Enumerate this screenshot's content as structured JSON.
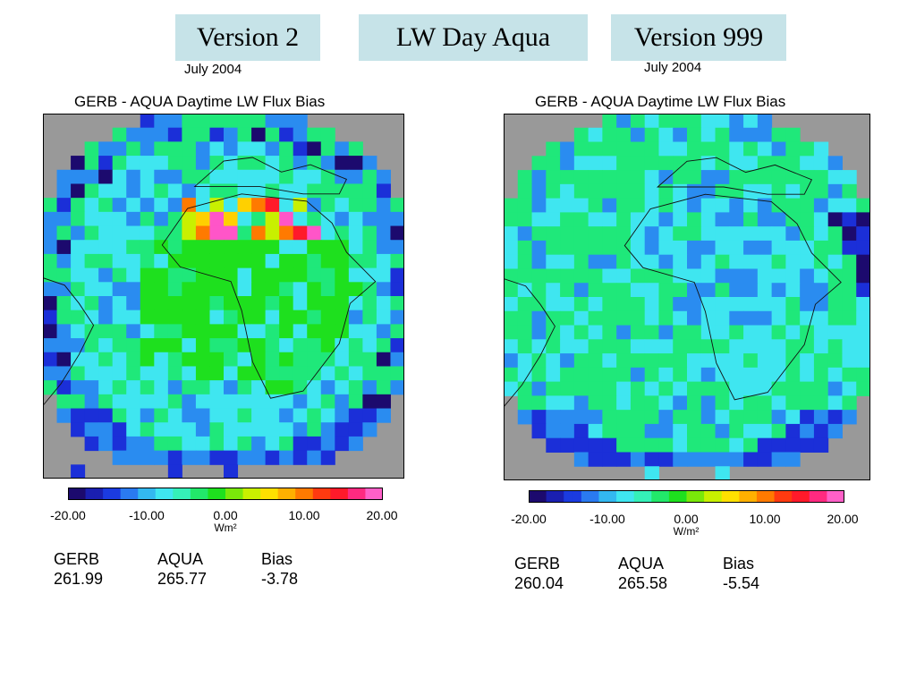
{
  "header": {
    "left_label": "Version 2",
    "center_label": "LW Day Aqua",
    "right_label": "Version 999"
  },
  "panels": [
    {
      "date": "July 2004",
      "title": "GERB - AQUA Daytime LW Flux Bias",
      "colorbar": {
        "ticks": [
          "-20.00",
          "-10.00",
          "0.00",
          "10.00",
          "20.00"
        ],
        "unit": "Wm²"
      },
      "stats": {
        "gerb_label": "GERB",
        "gerb_value": "261.99",
        "aqua_label": "AQUA",
        "aqua_value": "265.77",
        "bias_label": "Bias",
        "bias_value": "-3.78"
      }
    },
    {
      "date": "July 2004",
      "title": "GERB - AQUA Daytime LW Flux Bias",
      "colorbar": {
        "ticks": [
          "-20.00",
          "-10.00",
          "0.00",
          "10.00",
          "20.00"
        ],
        "unit": "W/m²"
      },
      "stats": {
        "gerb_label": "GERB",
        "gerb_value": "260.04",
        "aqua_label": "AQUA",
        "aqua_value": "265.58",
        "bias_label": "Bias",
        "bias_value": "-5.54"
      }
    }
  ],
  "colors": {
    "header_bg": "#c6e3e8",
    "no_data": "#999999",
    "colormap": [
      "#1c0a6e",
      "#1b2fd8",
      "#2a8cf0",
      "#3fe6f0",
      "#1fe87a",
      "#1ee01e",
      "#c8f000",
      "#ffd000",
      "#ff7a00",
      "#ff1a2a",
      "#ff55c8"
    ]
  }
}
